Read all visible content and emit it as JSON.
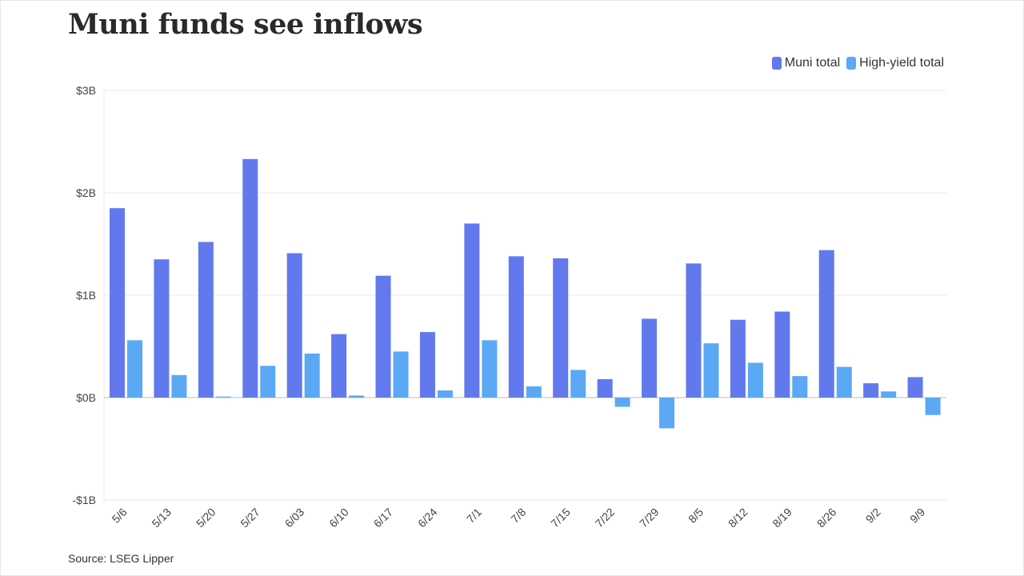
{
  "title": "Muni funds see inflows",
  "source": "Source: LSEG Lipper",
  "colors": {
    "muni": "#6279ee",
    "high_yield": "#5ba8f5",
    "grid": "#e8e8e8",
    "zero": "#bbbbbb"
  },
  "chart_data": {
    "type": "bar",
    "title": "Muni funds see inflows",
    "xlabel": "",
    "ylabel": "",
    "ylim": [
      -1,
      3
    ],
    "y_ticks": [
      3,
      2,
      1,
      0,
      -1
    ],
    "y_tick_labels": [
      "$3B",
      "$2B",
      "$1B",
      "$0B",
      "-$1B"
    ],
    "grid": true,
    "legend_position": "top-right",
    "categories": [
      "5/6",
      "5/13",
      "5/20",
      "5/27",
      "6/03",
      "6/10",
      "6/17",
      "6/24",
      "7/1",
      "7/8",
      "7/15",
      "7/22",
      "7/29",
      "8/5",
      "8/12",
      "8/19",
      "8/26",
      "9/2",
      "9/9"
    ],
    "series": [
      {
        "name": "Muni total",
        "values": [
          1.85,
          1.35,
          1.52,
          2.33,
          1.41,
          0.62,
          1.19,
          0.64,
          1.7,
          1.38,
          1.36,
          0.18,
          0.77,
          1.31,
          0.76,
          0.84,
          1.44,
          0.14,
          0.2
        ]
      },
      {
        "name": "High-yield total",
        "values": [
          0.56,
          0.22,
          0.01,
          0.31,
          0.43,
          0.02,
          0.45,
          0.07,
          0.56,
          0.11,
          0.27,
          -0.09,
          -0.3,
          0.53,
          0.34,
          0.21,
          0.3,
          0.06,
          -0.17
        ]
      }
    ]
  }
}
